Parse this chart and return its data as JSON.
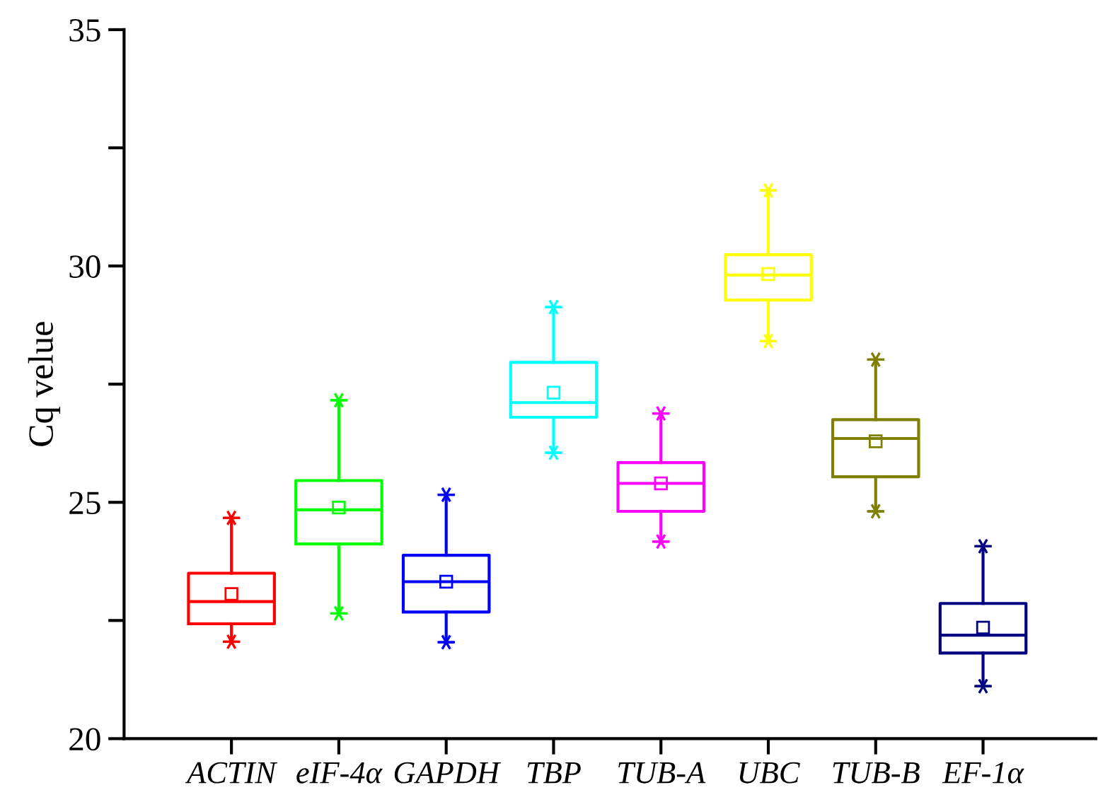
{
  "chart_data": {
    "type": "box",
    "ylabel": "Cq velue",
    "categories": [
      "ACTIN",
      "eIF-4α",
      "GAPDH",
      "TBP",
      "TUB-A",
      "UBC",
      "TUB-B",
      "EF-1α"
    ],
    "colors": [
      "#ff0000",
      "#00ff00",
      "#0000ff",
      "#00ffff",
      "#ff00ff",
      "#ffff00",
      "#808000",
      "#000080"
    ],
    "boxes": [
      {
        "low": 22.05,
        "q1": 22.43,
        "median": 22.9,
        "q3": 23.5,
        "high": 24.67,
        "mean": 23.06
      },
      {
        "low": 22.65,
        "q1": 24.12,
        "median": 24.84,
        "q3": 25.46,
        "high": 27.16,
        "mean": 24.89
      },
      {
        "low": 22.04,
        "q1": 22.68,
        "median": 23.32,
        "q3": 23.88,
        "high": 25.16,
        "mean": 23.32
      },
      {
        "low": 26.05,
        "q1": 26.8,
        "median": 27.11,
        "q3": 27.96,
        "high": 29.13,
        "mean": 27.32
      },
      {
        "low": 24.17,
        "q1": 24.81,
        "median": 25.4,
        "q3": 25.84,
        "high": 26.88,
        "mean": 25.4
      },
      {
        "low": 28.41,
        "q1": 29.28,
        "median": 29.81,
        "q3": 30.24,
        "high": 31.6,
        "mean": 29.83
      },
      {
        "low": 24.81,
        "q1": 25.54,
        "median": 26.35,
        "q3": 26.75,
        "high": 28.02,
        "mean": 26.29
      },
      {
        "low": 21.11,
        "q1": 21.81,
        "median": 22.19,
        "q3": 22.86,
        "high": 24.07,
        "mean": 22.35
      }
    ],
    "ylim": [
      20,
      35
    ],
    "yticks": [
      20,
      {
        "value": 22.5,
        "label": null
      },
      25,
      {
        "value": 27.5,
        "label": null
      },
      30,
      {
        "value": 32.5,
        "label": null
      },
      35
    ],
    "grid": false,
    "legend": false
  }
}
